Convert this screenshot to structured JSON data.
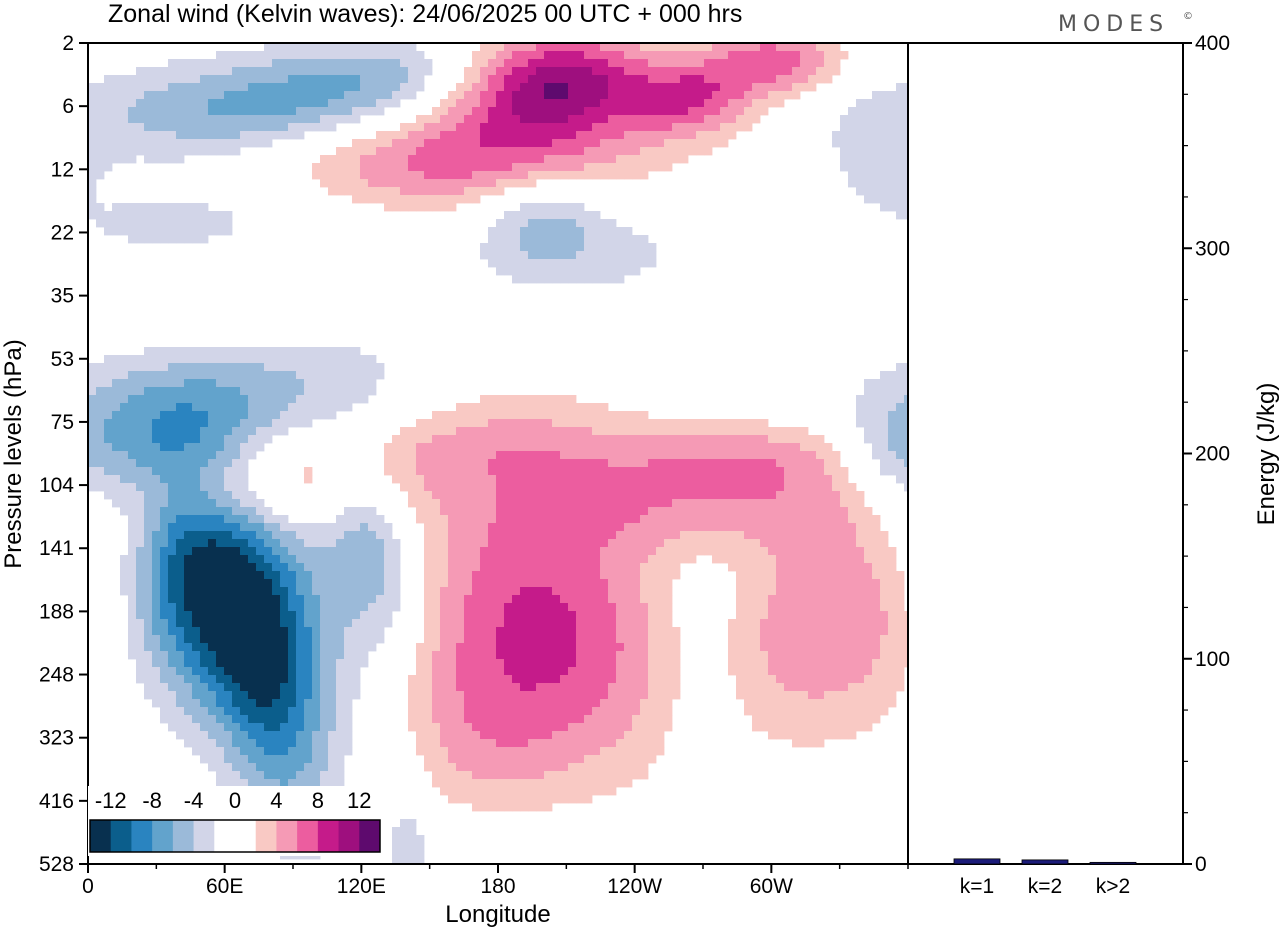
{
  "brand": {
    "logo_text": "MODES",
    "mark": "©"
  },
  "chart_data": [
    {
      "type": "heatmap",
      "title": "Zonal wind (Kelvin waves):  24/06/2025  00 UTC  + 000 hrs",
      "xlabel": "Longitude",
      "ylabel": "Pressure levels (hPa)",
      "x_ticks": [
        {
          "lon": 0,
          "label": "0"
        },
        {
          "lon": 60,
          "label": "60E"
        },
        {
          "lon": 120,
          "label": "120E"
        },
        {
          "lon": 180,
          "label": "180"
        },
        {
          "lon": 240,
          "label": "120W"
        },
        {
          "lon": 300,
          "label": "60W"
        }
      ],
      "x_range": [
        0,
        360
      ],
      "y_levels": [
        "2",
        "6",
        "12",
        "22",
        "35",
        "53",
        "75",
        "104",
        "141",
        "188",
        "248",
        "323",
        "416",
        "528"
      ],
      "colorbar": {
        "labels": [
          "-12",
          "-8",
          "-4",
          "0",
          "4",
          "8",
          "12"
        ],
        "bins": [
          {
            "lo": -14,
            "hi": -12,
            "color": "#08304f"
          },
          {
            "lo": -12,
            "hi": -10,
            "color": "#0b5e8c"
          },
          {
            "lo": -10,
            "hi": -8,
            "color": "#2a84c0"
          },
          {
            "lo": -8,
            "hi": -6,
            "color": "#62a3cc"
          },
          {
            "lo": -6,
            "hi": -4,
            "color": "#9bbad9"
          },
          {
            "lo": -4,
            "hi": -2,
            "color": "#d2d5e8"
          },
          {
            "lo": -2,
            "hi": 0,
            "color": "#ffffff"
          },
          {
            "lo": 0,
            "hi": 2,
            "color": "#ffffff"
          },
          {
            "lo": 2,
            "hi": 4,
            "color": "#f9c9c4"
          },
          {
            "lo": 4,
            "hi": 6,
            "color": "#f59ab5"
          },
          {
            "lo": 6,
            "hi": 8,
            "color": "#ec5d9f"
          },
          {
            "lo": 8,
            "hi": 10,
            "color": "#c51b8a"
          },
          {
            "lo": 10,
            "hi": 12,
            "color": "#9e0f7e"
          },
          {
            "lo": 12,
            "hi": 14,
            "color": "#5e0a6e"
          }
        ]
      },
      "features": [
        {
          "lon": 45,
          "lev": 3,
          "sx": 42,
          "sy": 0.65,
          "tilt": -0.045,
          "val": -6
        },
        {
          "lon": 80,
          "lev": 1.1,
          "sx": 60,
          "sy": 0.55,
          "tilt": -0.03,
          "val": -7
        },
        {
          "lon": 130,
          "lev": 0.5,
          "sx": 40,
          "sy": 0.45,
          "tilt": -0.03,
          "val": -4
        },
        {
          "lon": 205,
          "lev": 0.6,
          "sx": 30,
          "sy": 0.55,
          "tilt": -0.02,
          "val": 11
        },
        {
          "lon": 175,
          "lev": 1.6,
          "sx": 55,
          "sy": 0.7,
          "tilt": -0.025,
          "val": 6
        },
        {
          "lon": 300,
          "lev": 0.3,
          "sx": 22,
          "sy": 0.4,
          "tilt": -0.02,
          "val": 7
        },
        {
          "lon": 265,
          "lev": 0.9,
          "sx": 18,
          "sy": 0.4,
          "tilt": 0,
          "val": 6
        },
        {
          "lon": 200,
          "lev": 2.7,
          "sx": 18,
          "sy": 0.5,
          "tilt": 0,
          "val": -4
        },
        {
          "lon": 45,
          "lev": 3.4,
          "sx": 40,
          "sy": 0.8,
          "tilt": -0.03,
          "val": 4
        },
        {
          "lon": 135,
          "lev": 1.8,
          "sx": 55,
          "sy": 0.55,
          "tilt": -0.04,
          "val": 3
        },
        {
          "lon": 100,
          "lev": 5.4,
          "sx": 75,
          "sy": 0.6,
          "tilt": -0.045,
          "val": -4
        },
        {
          "lon": 40,
          "lev": 6.3,
          "sx": 30,
          "sy": 0.7,
          "tilt": -0.03,
          "val": -5
        },
        {
          "lon": 175,
          "lev": 5.5,
          "sx": 45,
          "sy": 0.55,
          "tilt": -0.02,
          "val": 3
        },
        {
          "lon": 215,
          "lev": 3.3,
          "sx": 40,
          "sy": 0.55,
          "tilt": 0,
          "val": -3
        },
        {
          "lon": 75,
          "lev": 7,
          "sx": 45,
          "sy": 0.55,
          "tilt": -0.045,
          "val": 5
        },
        {
          "lon": 180,
          "lev": 6.4,
          "sx": 50,
          "sy": 0.45,
          "tilt": -0.02,
          "val": 3
        },
        {
          "lon": 270,
          "lev": 7.2,
          "sx": 60,
          "sy": 0.6,
          "tilt": -0.03,
          "val": 5
        },
        {
          "lon": 290,
          "lev": 6.5,
          "sx": 35,
          "sy": 0.4,
          "tilt": -0.02,
          "val": 3
        },
        {
          "lon": 55,
          "lev": 8.6,
          "sx": 32,
          "sy": 1.5,
          "tilt": 0.04,
          "val": -13.5
        },
        {
          "lon": 80,
          "lev": 10.5,
          "sx": 16,
          "sy": 1.6,
          "tilt": 0.025,
          "val": -6
        },
        {
          "lon": 125,
          "lev": 8,
          "sx": 14,
          "sy": 1.1,
          "tilt": 0.02,
          "val": -6
        },
        {
          "lon": 20,
          "lev": 8,
          "sx": 12,
          "sy": 0.8,
          "tilt": 0,
          "val": 3
        },
        {
          "lon": 200,
          "lev": 9.3,
          "sx": 38,
          "sy": 1.6,
          "tilt": 0.02,
          "val": 8.5
        },
        {
          "lon": 170,
          "lev": 11.2,
          "sx": 25,
          "sy": 1.2,
          "tilt": 0.03,
          "val": 3
        },
        {
          "lon": 315,
          "lev": 9.5,
          "sx": 35,
          "sy": 1.2,
          "tilt": 0,
          "val": 4.5
        },
        {
          "lon": 345,
          "lev": 8.5,
          "sx": 25,
          "sy": 1.1,
          "tilt": 0,
          "val": 3
        },
        {
          "lon": 350,
          "lev": 6.6,
          "sx": 15,
          "sy": 0.6,
          "tilt": 0,
          "val": -3
        },
        {
          "lon": 270,
          "lev": 9.5,
          "sx": 15,
          "sy": 1.3,
          "tilt": 0,
          "val": -2.5
        },
        {
          "lon": 180,
          "lev": 13,
          "sx": 28,
          "sy": 0.8,
          "tilt": -0.02,
          "val": -2.5
        },
        {
          "lon": 140,
          "lev": 12.6,
          "sx": 7,
          "sy": 0.8,
          "tilt": 0,
          "val": -2.5
        },
        {
          "lon": 345,
          "lev": 1.8,
          "sx": 15,
          "sy": 0.6,
          "tilt": 0,
          "val": -2.5
        }
      ]
    },
    {
      "type": "bar",
      "categories": [
        "k=1",
        "k=2",
        "k>2"
      ],
      "values": [
        2.5,
        2,
        0.8
      ],
      "ylabel": "Energy (J/kg)",
      "ylim": [
        0,
        400
      ],
      "y_ticks": [
        "0",
        "100",
        "200",
        "300",
        "400"
      ],
      "colors": {
        "bar": "#1c1c7a"
      }
    }
  ]
}
